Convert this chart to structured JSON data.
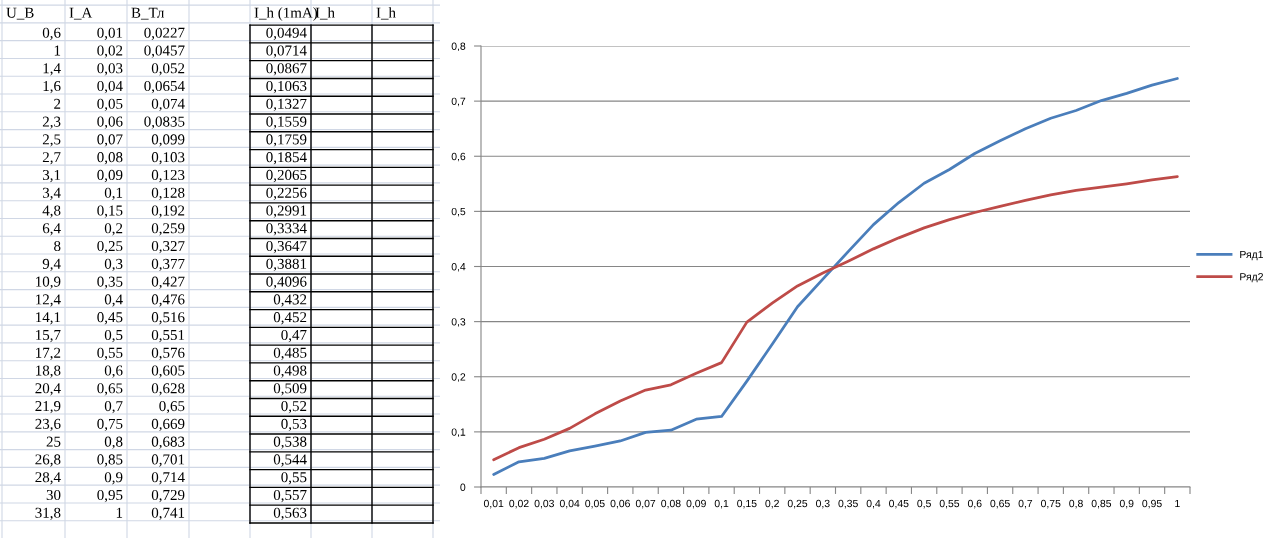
{
  "chart_data": [
    {
      "type": "other",
      "categories": [
        "U_B",
        "I_A",
        "B_Тл",
        "I_h (1mA)",
        "I_h",
        "I_h"
      ],
      "cell_labels": [
        [
          "0,6",
          "0,01",
          "0,0227",
          "0,0494",
          null,
          null
        ],
        [
          "1",
          "0,02",
          "0,0457",
          "0,0714",
          null,
          null
        ],
        [
          "1,4",
          "0,03",
          "0,052",
          "0,0867",
          null,
          null
        ],
        [
          "1,6",
          "0,04",
          "0,0654",
          "0,1063",
          null,
          null
        ],
        [
          "2",
          "0,05",
          "0,074",
          "0,1327",
          null,
          null
        ],
        [
          "2,3",
          "0,06",
          "0,0835",
          "0,1559",
          null,
          null
        ],
        [
          "2,5",
          "0,07",
          "0,099",
          "0,1759",
          null,
          null
        ],
        [
          "2,7",
          "0,08",
          "0,103",
          "0,1854",
          null,
          null
        ],
        [
          "3,1",
          "0,09",
          "0,123",
          "0,2065",
          null,
          null
        ],
        [
          "3,4",
          "0,1",
          "0,128",
          "0,2256",
          null,
          null
        ],
        [
          "4,8",
          "0,15",
          "0,192",
          "0,2991",
          null,
          null
        ],
        [
          "6,4",
          "0,2",
          "0,259",
          "0,3334",
          null,
          null
        ],
        [
          "8",
          "0,25",
          "0,327",
          "0,3647",
          null,
          null
        ],
        [
          "9,4",
          "0,3",
          "0,377",
          "0,3881",
          null,
          null
        ],
        [
          "10,9",
          "0,35",
          "0,427",
          "0,4096",
          null,
          null
        ],
        [
          "12,4",
          "0,4",
          "0,476",
          "0,432",
          null,
          null
        ],
        [
          "14,1",
          "0,45",
          "0,516",
          "0,452",
          null,
          null
        ],
        [
          "15,7",
          "0,5",
          "0,551",
          "0,47",
          null,
          null
        ],
        [
          "17,2",
          "0,55",
          "0,576",
          "0,485",
          null,
          null
        ],
        [
          "18,8",
          "0,6",
          "0,605",
          "0,498",
          null,
          null
        ],
        [
          "20,4",
          "0,65",
          "0,628",
          "0,509",
          null,
          null
        ],
        [
          "21,9",
          "0,7",
          "0,65",
          "0,52",
          null,
          null
        ],
        [
          "23,6",
          "0,75",
          "0,669",
          "0,53",
          null,
          null
        ],
        [
          "25",
          "0,8",
          "0,683",
          "0,538",
          null,
          null
        ],
        [
          "26,8",
          "0,85",
          "0,701",
          "0,544",
          null,
          null
        ],
        [
          "28,4",
          "0,9",
          "0,714",
          "0,55",
          null,
          null
        ],
        [
          "30",
          "0,95",
          "0,729",
          "0,557",
          null,
          null
        ],
        [
          "31,8",
          "1",
          "0,741",
          "0,563",
          null,
          null
        ]
      ]
    },
    {
      "type": "line",
      "categories": [
        "0,01",
        "0,02",
        "0,03",
        "0,04",
        "0,05",
        "0,06",
        "0,07",
        "0,08",
        "0,09",
        "0,1",
        "0,15",
        "0,2",
        "0,25",
        "0,3",
        "0,35",
        "0,4",
        "0,45",
        "0,5",
        "0,55",
        "0,6",
        "0,65",
        "0,7",
        "0,75",
        "0,8",
        "0,85",
        "0,9",
        "0,95",
        "1"
      ],
      "series": [
        {
          "name": "Ряд1",
          "color": "#4a7ebb",
          "values": [
            0.0227,
            0.0457,
            0.052,
            0.0654,
            0.074,
            0.0835,
            0.099,
            0.103,
            0.123,
            0.128,
            0.192,
            0.259,
            0.327,
            0.377,
            0.427,
            0.476,
            0.516,
            0.551,
            0.576,
            0.605,
            0.628,
            0.65,
            0.669,
            0.683,
            0.701,
            0.714,
            0.729,
            0.741
          ]
        },
        {
          "name": "Ряд2",
          "color": "#be4b48",
          "values": [
            0.0494,
            0.0714,
            0.0867,
            0.1063,
            0.1327,
            0.1559,
            0.1759,
            0.1854,
            0.2065,
            0.2256,
            0.2991,
            0.3334,
            0.3647,
            0.3881,
            0.4096,
            0.432,
            0.452,
            0.47,
            0.485,
            0.498,
            0.509,
            0.52,
            0.53,
            0.538,
            0.544,
            0.55,
            0.557,
            0.563
          ]
        }
      ],
      "ylim": [
        0,
        0.8
      ],
      "yticks": [
        0,
        {
          "value": 0.1,
          "label": "0,1"
        },
        {
          "value": 0.2,
          "label": "0,2"
        },
        {
          "value": 0.3,
          "label": "0,3"
        },
        {
          "value": 0.4,
          "label": "0,4"
        },
        {
          "value": 0.5,
          "label": "0,5"
        },
        {
          "value": 0.6,
          "label": "0,6"
        },
        {
          "value": 0.7,
          "label": "0,7"
        },
        {
          "value": 0.8,
          "label": "0,8"
        }
      ],
      "grid": "y",
      "legend": "right"
    }
  ]
}
